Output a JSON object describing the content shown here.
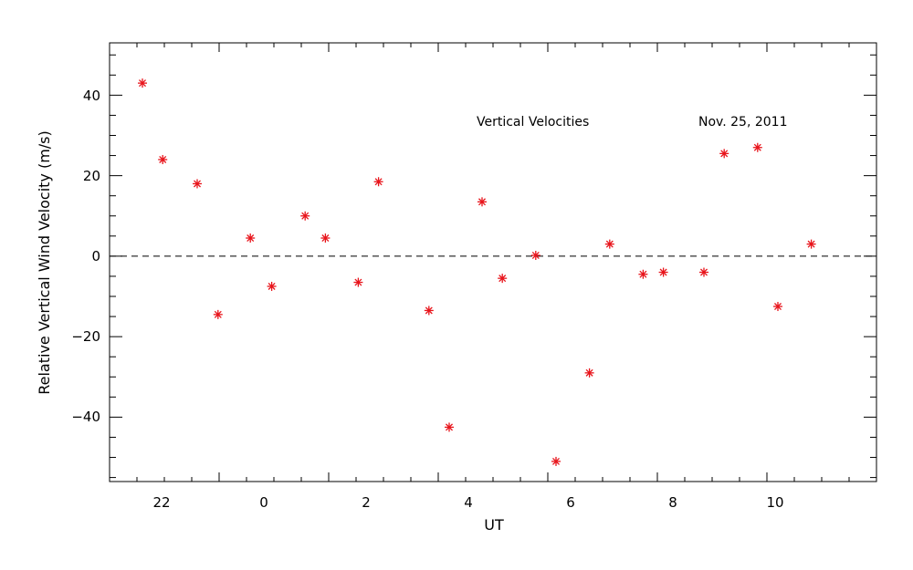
{
  "chart_data": {
    "type": "scatter",
    "title": "",
    "xlabel": "UT",
    "ylabel": "Relative Vertical Wind Velocity (m/s)",
    "x_tick_labels": [
      "22",
      "0",
      "2",
      "4",
      "6",
      "8",
      "10"
    ],
    "y_tick_labels": [
      "40",
      "20",
      "0",
      "−20",
      "−40"
    ],
    "annotations": [
      "Vertical Velocities",
      "Nov. 25, 2011"
    ],
    "xlim": [
      -2.0,
      12.0
    ],
    "ylim": [
      -56,
      53
    ],
    "zero_line": true,
    "grid": false,
    "marker_color": "#e8141b",
    "series": [
      {
        "x": [
          -1.4,
          -1.03,
          -0.4,
          -0.02,
          0.57,
          0.96,
          1.57,
          1.94,
          2.54,
          2.91,
          3.83,
          4.2,
          4.8,
          5.17,
          5.78,
          6.15,
          6.76,
          7.13,
          7.74,
          8.11,
          8.85,
          9.22,
          9.83,
          10.2,
          10.81
        ],
        "y": [
          43,
          24,
          18,
          -14.5,
          4.5,
          -7.5,
          10,
          4.5,
          -6.5,
          18.5,
          -13.5,
          -42.5,
          13.5,
          -5.5,
          0.2,
          -51,
          -29,
          3,
          -4.5,
          -4,
          -4,
          25.5,
          27,
          -12.5,
          3
        ]
      }
    ]
  }
}
